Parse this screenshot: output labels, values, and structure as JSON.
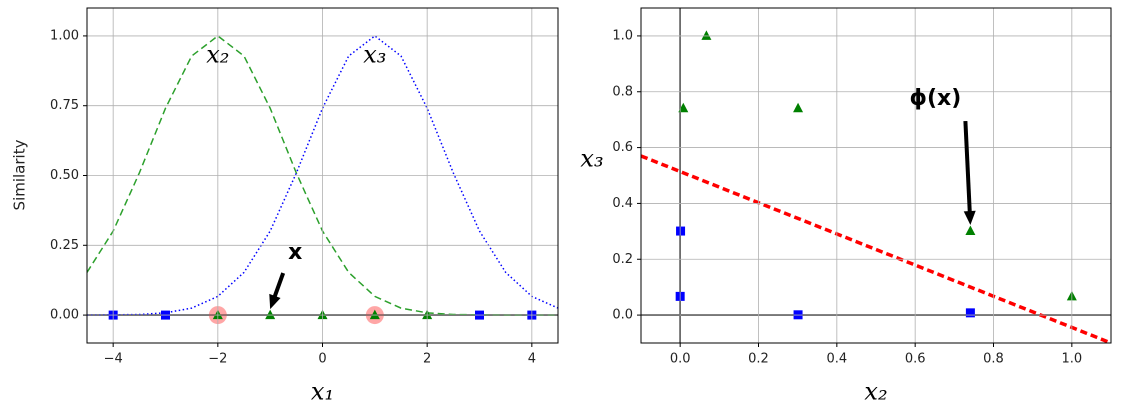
{
  "chart_data": [
    {
      "type": "line",
      "xlabel": "x₁",
      "ylabel": "Similarity",
      "xlim": [
        -4.5,
        4.5
      ],
      "ylim": [
        -0.1,
        1.1
      ],
      "xticks": [
        {
          "value": -4,
          "label": "−4"
        },
        {
          "value": -2,
          "label": "−2"
        },
        0,
        2,
        4
      ],
      "yticks": [
        {
          "value": 0,
          "label": "0.00"
        },
        {
          "value": 0.25,
          "label": "0.25"
        },
        {
          "value": 0.5,
          "label": "0.50"
        },
        {
          "value": 0.75,
          "label": "0.75"
        },
        {
          "value": 1,
          "label": "1.00"
        }
      ],
      "grid": true,
      "hline": 0,
      "x": [
        -4.5,
        -4,
        -3.5,
        -3,
        -2.5,
        -2,
        -1.5,
        -1,
        -0.5,
        0,
        0.5,
        1,
        1.5,
        2,
        2.5,
        3,
        3.5,
        4,
        4.5
      ],
      "series": [
        {
          "name": "x₂",
          "color": "#2ca02c",
          "style": "dashed",
          "values": [
            0.153,
            0.301,
            0.509,
            0.741,
            0.928,
            1,
            0.928,
            0.741,
            0.509,
            0.301,
            0.153,
            0.067,
            0.025,
            0.008,
            0.002,
            0.001,
            0,
            0,
            0
          ]
        },
        {
          "name": "x₃",
          "color": "#0000ff",
          "style": "dotted",
          "values": [
            0,
            0.001,
            0.002,
            0.008,
            0.025,
            0.067,
            0.153,
            0.301,
            0.509,
            0.741,
            0.928,
            1,
            0.928,
            0.741,
            0.509,
            0.301,
            0.153,
            0.067,
            0.025
          ]
        }
      ],
      "points": [
        {
          "color": "#ff0000",
          "marker": "circle",
          "opacity": 0.35,
          "x": [
            -2,
            1
          ],
          "y": [
            0,
            0
          ]
        },
        {
          "color": "#0000ff",
          "marker": "square",
          "x": [
            -4,
            -3,
            3,
            4
          ],
          "y": [
            0,
            0,
            0,
            0
          ]
        },
        {
          "color": "#008000",
          "marker": "triangle",
          "x": [
            -2,
            -1,
            0,
            1,
            2
          ],
          "y": [
            0,
            0,
            0,
            0,
            0
          ]
        }
      ],
      "annotation": {
        "text": "x",
        "x": -1,
        "y": 0
      }
    },
    {
      "type": "scatter",
      "xlabel": "x₂",
      "ylabel": "x₃",
      "xlim": [
        -0.1,
        1.1
      ],
      "ylim": [
        -0.1,
        1.1
      ],
      "xticks": [
        {
          "value": 0,
          "label": "0.0"
        },
        0.2,
        0.4,
        0.6,
        0.8,
        {
          "value": 1,
          "label": "1.0"
        }
      ],
      "yticks": [
        {
          "value": 0,
          "label": "0.0"
        },
        0.2,
        0.4,
        0.6,
        0.8,
        {
          "value": 1,
          "label": "1.0"
        }
      ],
      "grid": true,
      "hline": 0,
      "vline": 0,
      "points": [
        {
          "color": "#0000ff",
          "marker": "square",
          "x": [
            0.301,
            0.741,
            0.001,
            0
          ],
          "y": [
            0.001,
            0.008,
            0.301,
            0.067
          ]
        },
        {
          "color": "#008000",
          "marker": "triangle",
          "x": [
            1,
            0.741,
            0.301,
            0.067,
            0.008
          ],
          "y": [
            0.067,
            0.301,
            0.741,
            1,
            0.741
          ]
        }
      ],
      "lines": [
        {
          "color": "#ff0000",
          "style": "dashed",
          "x": [
            -0.1,
            1.1
          ],
          "y": [
            0.57,
            -0.1
          ]
        }
      ],
      "annotation": {
        "text": "ϕ(x)",
        "x": 0.741,
        "y": 0.301
      }
    }
  ]
}
